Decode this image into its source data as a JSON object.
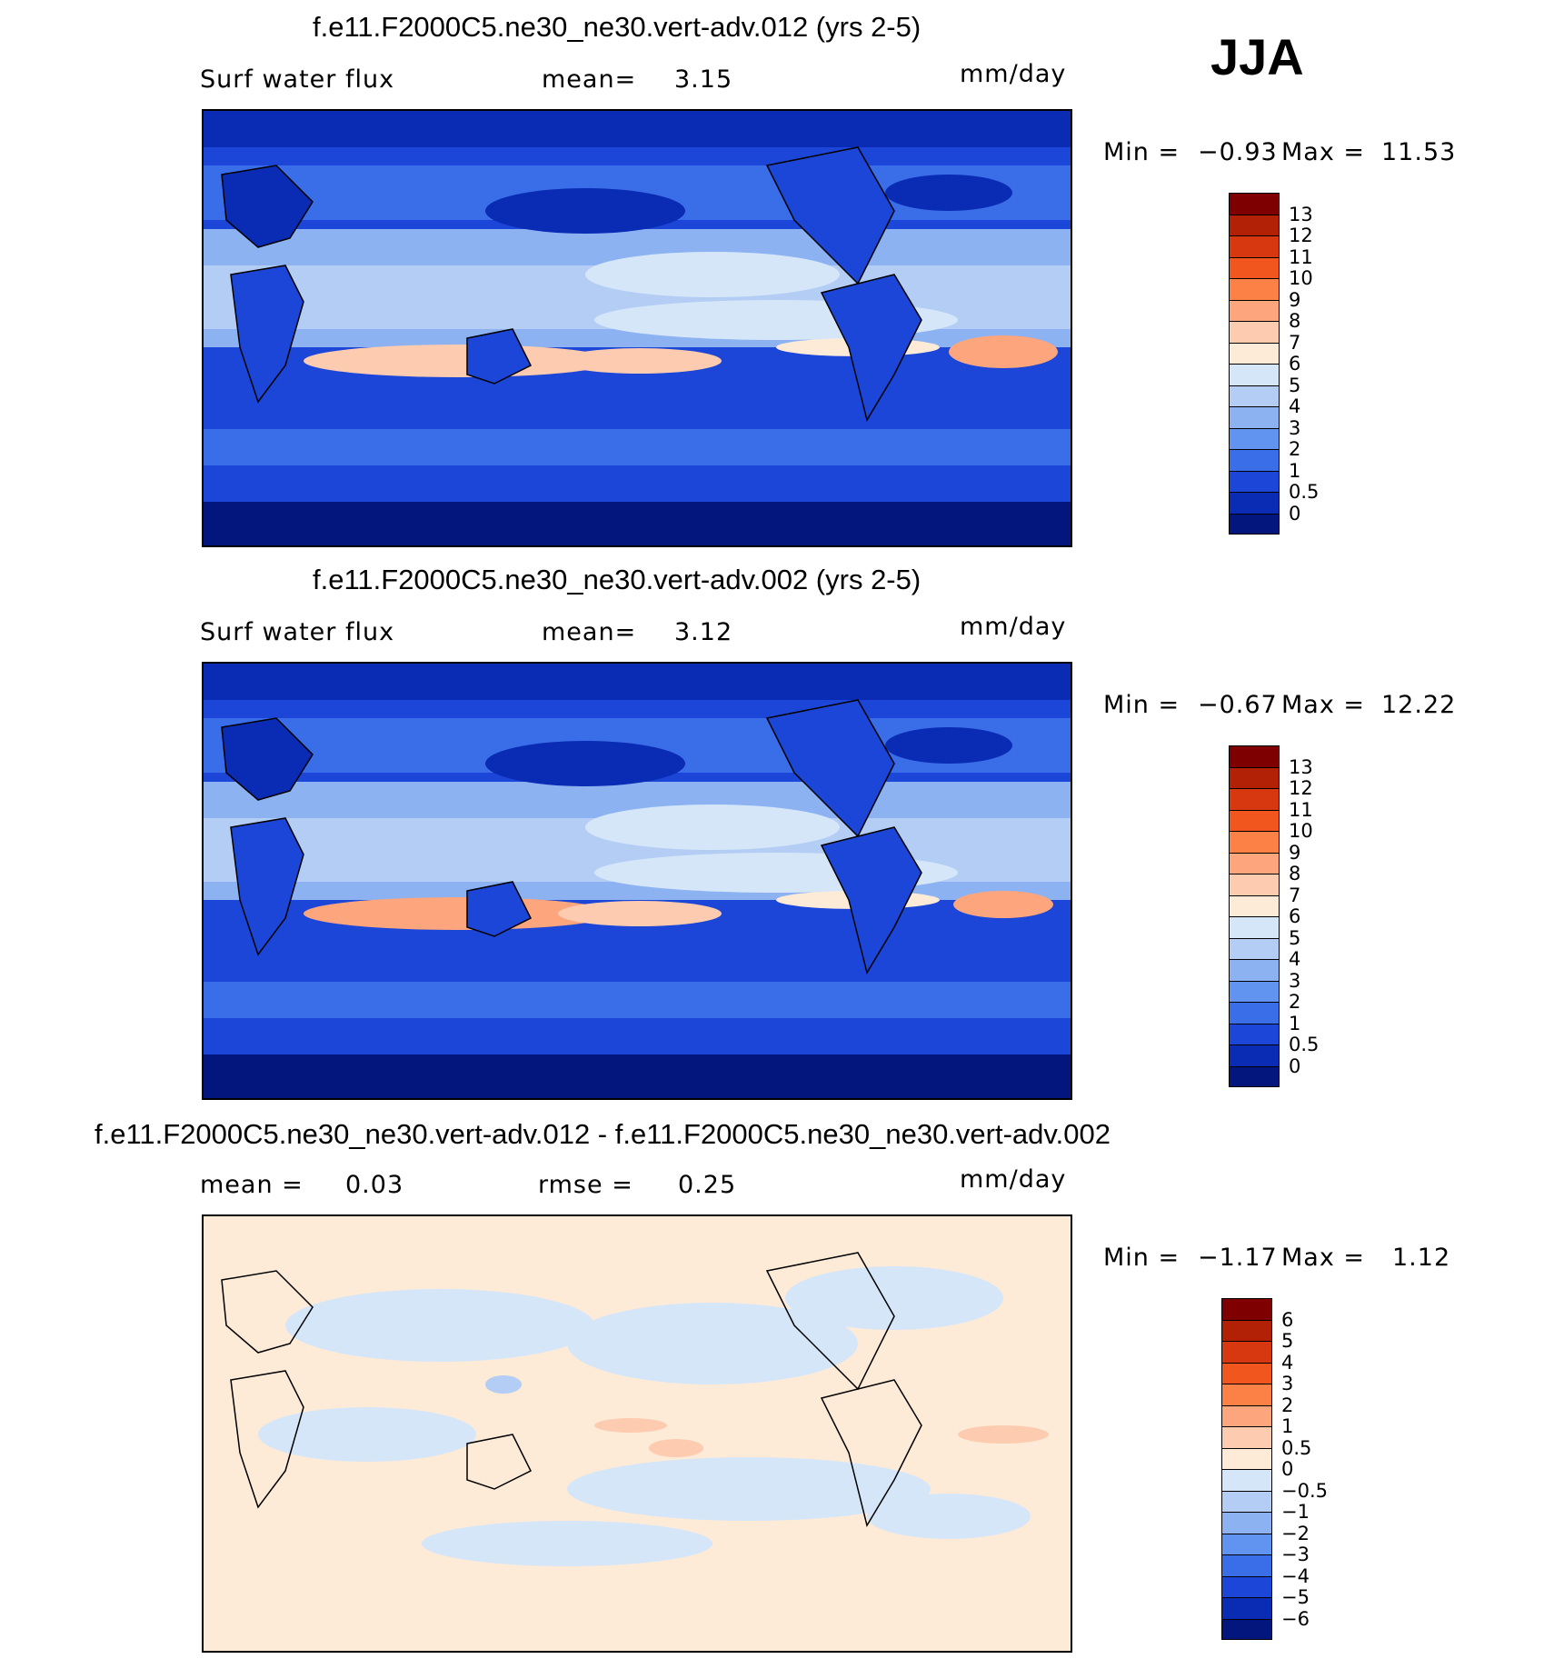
{
  "season": "JJA",
  "chart_data": [
    {
      "type": "heatmap",
      "title": "f.e11.F2000C5.ne30_ne30.vert-adv.012 (yrs 2-5)",
      "variable": "Surf water flux",
      "mean_label": "mean=",
      "mean_value": "3.15",
      "units": "mm/day",
      "min_label": "Min =",
      "min_value": "−0.93",
      "max_label": "Max =",
      "max_value": "11.53",
      "colorbar": {
        "labels": [
          "13",
          "12",
          "11",
          "10",
          "9",
          "8",
          "7",
          "6",
          "5",
          "4",
          "3",
          "2",
          "1",
          "0.5",
          "0"
        ],
        "colors": [
          "#7f0000",
          "#b22005",
          "#d8380f",
          "#f2561f",
          "#fb8146",
          "#fda57c",
          "#fdcbb0",
          "#fdebd8",
          "#d6e6f9",
          "#b3cdf5",
          "#8cb2f2",
          "#6194f0",
          "#3a6de8",
          "#1c46d8",
          "#0a2cb5",
          "#03167d"
        ]
      }
    },
    {
      "type": "heatmap",
      "title": "f.e11.F2000C5.ne30_ne30.vert-adv.002 (yrs 2-5)",
      "variable": "Surf water flux",
      "mean_label": "mean=",
      "mean_value": "3.12",
      "units": "mm/day",
      "min_label": "Min =",
      "min_value": "−0.67",
      "max_label": "Max =",
      "max_value": "12.22",
      "colorbar": {
        "labels": [
          "13",
          "12",
          "11",
          "10",
          "9",
          "8",
          "7",
          "6",
          "5",
          "4",
          "3",
          "2",
          "1",
          "0.5",
          "0"
        ],
        "colors": [
          "#7f0000",
          "#b22005",
          "#d8380f",
          "#f2561f",
          "#fb8146",
          "#fda57c",
          "#fdcbb0",
          "#fdebd8",
          "#d6e6f9",
          "#b3cdf5",
          "#8cb2f2",
          "#6194f0",
          "#3a6de8",
          "#1c46d8",
          "#0a2cb5",
          "#03167d"
        ]
      }
    },
    {
      "type": "heatmap",
      "title": "f.e11.F2000C5.ne30_ne30.vert-adv.012 - f.e11.F2000C5.ne30_ne30.vert-adv.002",
      "mean_label": "mean =",
      "mean_value": "0.03",
      "rmse_label": "rmse =",
      "rmse_value": "0.25",
      "units": "mm/day",
      "min_label": "Min =",
      "min_value": "−1.17",
      "max_label": "Max =",
      "max_value": "1.12",
      "colorbar": {
        "labels": [
          "6",
          "5",
          "4",
          "3",
          "2",
          "1",
          "0.5",
          "0",
          "−0.5",
          "−1",
          "−2",
          "−3",
          "−4",
          "−5",
          "−6"
        ],
        "colors": [
          "#7f0000",
          "#b22005",
          "#d8380f",
          "#f2561f",
          "#fb8146",
          "#fda57c",
          "#fdcbb0",
          "#fdebd8",
          "#d6e6f9",
          "#b3cdf5",
          "#8cb2f2",
          "#6194f0",
          "#3a6de8",
          "#1c46d8",
          "#0a2cb5",
          "#03167d"
        ]
      }
    }
  ]
}
